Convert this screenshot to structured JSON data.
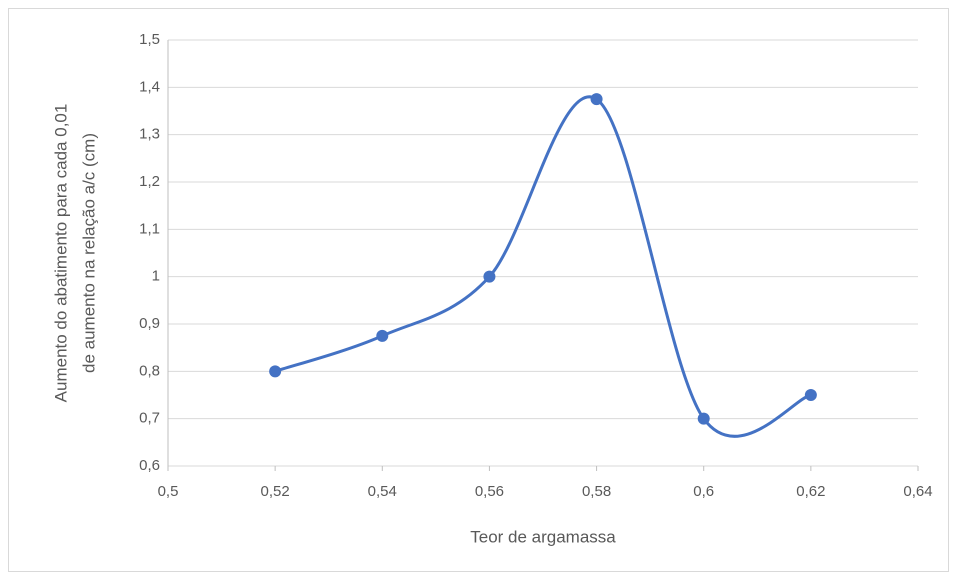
{
  "chart_data": {
    "type": "scatter_smooth",
    "x": [
      0.52,
      0.54,
      0.56,
      0.58,
      0.6,
      0.62
    ],
    "series": [
      {
        "color": "#4472c4",
        "values": [
          0.8,
          0.875,
          1.0,
          1.375,
          0.7,
          0.75
        ]
      }
    ],
    "xlabel": "Teor de argamassa",
    "ylabel": [
      "Aumento do abatimento para cada 0,01",
      "de aumento na relação a/c (cm)"
    ],
    "xlim": [
      0.5,
      0.64
    ],
    "xticks": [
      {
        "value": 0.5,
        "label": "0,5"
      },
      {
        "value": 0.52,
        "label": "0,52"
      },
      {
        "value": 0.54,
        "label": "0,54"
      },
      {
        "value": 0.56,
        "label": "0,56"
      },
      {
        "value": 0.58,
        "label": "0,58"
      },
      {
        "value": 0.6,
        "label": "0,6"
      },
      {
        "value": 0.62,
        "label": "0,62"
      },
      {
        "value": 0.64,
        "label": "0,64"
      }
    ],
    "ylim": [
      0.6,
      1.5
    ],
    "yticks": [
      {
        "value": 0.6,
        "label": "0,6"
      },
      {
        "value": 0.7,
        "label": "0,7"
      },
      {
        "value": 0.8,
        "label": "0,8"
      },
      {
        "value": 0.9,
        "label": "0,9"
      },
      1,
      {
        "value": 1.1,
        "label": "1,1"
      },
      {
        "value": 1.2,
        "label": "1,2"
      },
      {
        "value": 1.3,
        "label": "1,3"
      },
      {
        "value": 1.4,
        "label": "1,4"
      },
      {
        "value": 1.5,
        "label": "1,5"
      }
    ],
    "grid": true
  }
}
